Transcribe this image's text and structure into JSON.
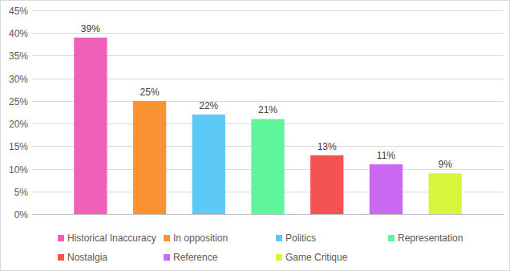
{
  "chart_data": {
    "type": "bar",
    "categories": [
      "Historical Inaccuracy",
      "In opposition",
      "Politics",
      "Representation",
      "Nostalgia",
      "Reference",
      "Game Critique"
    ],
    "values": [
      39,
      25,
      22,
      21,
      13,
      11,
      9
    ],
    "value_labels": [
      "39%",
      "25%",
      "22%",
      "21%",
      "13%",
      "11%",
      "9%"
    ],
    "colors": [
      "#f060b8",
      "#fb9332",
      "#5cc9f7",
      "#5ef59c",
      "#f55252",
      "#c968f0",
      "#d8f53c"
    ],
    "ylim": [
      0,
      45
    ],
    "yticks": [
      {
        "value": 0,
        "label": "0%"
      },
      {
        "value": 5,
        "label": "5%"
      },
      {
        "value": 10,
        "label": "10%"
      },
      {
        "value": 15,
        "label": "15%"
      },
      {
        "value": 20,
        "label": "20%"
      },
      {
        "value": 25,
        "label": "25%"
      },
      {
        "value": 30,
        "label": "30%"
      },
      {
        "value": 35,
        "label": "35%"
      },
      {
        "value": 40,
        "label": "40%"
      },
      {
        "value": 45,
        "label": "45%"
      }
    ],
    "grid": true,
    "data_labels": true,
    "legend": "bottom",
    "tick_labels": "y"
  }
}
